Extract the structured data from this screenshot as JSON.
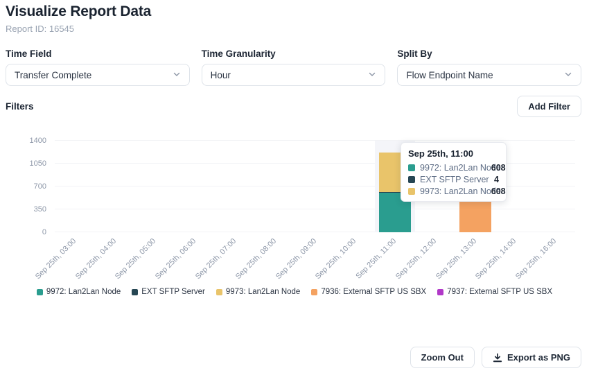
{
  "header": {
    "title": "Visualize Report Data",
    "report_id": "Report ID: 16545"
  },
  "controls": [
    {
      "label": "Time Field",
      "value": "Transfer Complete"
    },
    {
      "label": "Time Granularity",
      "value": "Hour"
    },
    {
      "label": "Split By",
      "value": "Flow Endpoint Name"
    }
  ],
  "filters": {
    "label": "Filters",
    "add_button": "Add Filter"
  },
  "chart_data": {
    "type": "bar",
    "stacked": true,
    "categories": [
      "Sep 25th, 03:00",
      "Sep 25th, 04:00",
      "Sep 25th, 05:00",
      "Sep 25th, 06:00",
      "Sep 25th, 07:00",
      "Sep 25th, 08:00",
      "Sep 25th, 09:00",
      "Sep 25th, 10:00",
      "Sep 25th, 11:00",
      "Sep 25th, 12:00",
      "Sep 25th, 13:00",
      "Sep 25th, 14:00",
      "Sep 25th, 16:00"
    ],
    "series": [
      {
        "name": "9972: Lan2Lan Node",
        "color": "#2a9d8f",
        "values": [
          0,
          0,
          0,
          0,
          0,
          0,
          0,
          0,
          608,
          0,
          0,
          0,
          0
        ]
      },
      {
        "name": "EXT SFTP Server",
        "color": "#264653",
        "values": [
          0,
          0,
          0,
          0,
          0,
          0,
          0,
          0,
          4,
          0,
          0,
          0,
          0
        ]
      },
      {
        "name": "9973: Lan2Lan Node",
        "color": "#e9c46a",
        "values": [
          0,
          0,
          0,
          0,
          0,
          0,
          0,
          0,
          608,
          0,
          0,
          0,
          0
        ]
      },
      {
        "name": "7936: External SFTP US SBX",
        "color": "#f4a261",
        "values": [
          0,
          0,
          0,
          0,
          0,
          0,
          0,
          0,
          0,
          0,
          650,
          0,
          0
        ]
      },
      {
        "name": "7937: External SFTP US SBX",
        "color": "#b138c8",
        "values": [
          0,
          0,
          0,
          0,
          0,
          0,
          0,
          0,
          0,
          0,
          25,
          0,
          0
        ]
      }
    ],
    "y_ticks": [
      0,
      350,
      700,
      1050,
      1400
    ],
    "ylim": [
      0,
      1400
    ],
    "grid": true,
    "legend_position": "bottom",
    "highlighted_category_index": 8,
    "highlight_color": "#f4f5f9"
  },
  "tooltip": {
    "title": "Sep 25th, 11:00",
    "rows": [
      {
        "name": "9972: Lan2Lan Node",
        "value": "608",
        "color": "#2a9d8f"
      },
      {
        "name": "EXT SFTP Server",
        "value": "4",
        "color": "#264653"
      },
      {
        "name": "9973: Lan2Lan Node",
        "value": "608",
        "color": "#e9c46a"
      }
    ]
  },
  "footer": {
    "zoom_out": "Zoom Out",
    "export_png": "Export as PNG"
  }
}
